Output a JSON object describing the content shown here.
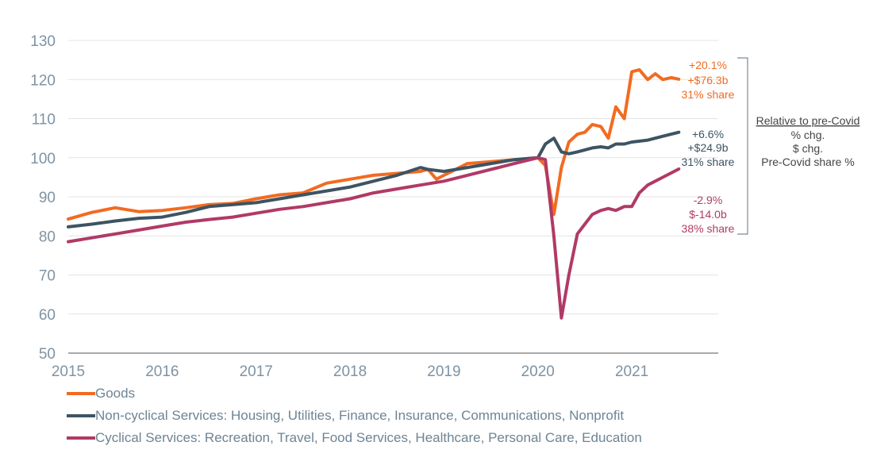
{
  "chart_data": {
    "type": "line",
    "xlim": [
      2015,
      2021.92
    ],
    "ylim": [
      50,
      130
    ],
    "yticks": [
      50,
      60,
      70,
      80,
      90,
      100,
      110,
      120,
      130
    ],
    "xticks": [
      "2015",
      "2016",
      "2017",
      "2018",
      "2019",
      "2020",
      "2021"
    ],
    "grid": true,
    "legend_position": "bottom-left",
    "series": [
      {
        "name": "Goods",
        "color": "#f26b21",
        "x": [
          2015.0,
          2015.25,
          2015.5,
          2015.75,
          2016.0,
          2016.25,
          2016.5,
          2016.75,
          2017.0,
          2017.25,
          2017.5,
          2017.75,
          2018.0,
          2018.25,
          2018.5,
          2018.75,
          2018.83,
          2018.92,
          2019.0,
          2019.25,
          2019.5,
          2019.75,
          2020.0,
          2020.08,
          2020.17,
          2020.25,
          2020.33,
          2020.42,
          2020.5,
          2020.58,
          2020.67,
          2020.75,
          2020.83,
          2020.92,
          2021.0,
          2021.08,
          2021.17,
          2021.25,
          2021.33,
          2021.42,
          2021.5
        ],
        "values": [
          84.3,
          86.0,
          87.2,
          86.2,
          86.5,
          87.2,
          88.0,
          88.3,
          89.5,
          90.5,
          91.0,
          93.5,
          94.5,
          95.5,
          96.0,
          96.5,
          97.0,
          94.5,
          95.5,
          98.5,
          99.0,
          99.5,
          100.0,
          98.0,
          85.5,
          97.5,
          104.0,
          106.0,
          106.5,
          108.5,
          108.0,
          105.0,
          113.0,
          110.0,
          122.0,
          122.5,
          120.0,
          121.5,
          120.0,
          120.5,
          120.1
        ]
      },
      {
        "name": "Non-cyclical Services: Housing, Utilities, Finance, Insurance, Communications, Nonprofit",
        "color": "#3d5462",
        "x": [
          2015.0,
          2015.25,
          2015.5,
          2015.75,
          2016.0,
          2016.25,
          2016.5,
          2016.75,
          2017.0,
          2017.25,
          2017.5,
          2017.75,
          2018.0,
          2018.25,
          2018.5,
          2018.75,
          2018.83,
          2019.0,
          2019.25,
          2019.5,
          2019.75,
          2020.0,
          2020.08,
          2020.17,
          2020.25,
          2020.33,
          2020.42,
          2020.5,
          2020.58,
          2020.67,
          2020.75,
          2020.83,
          2020.92,
          2021.0,
          2021.17,
          2021.33,
          2021.5
        ],
        "values": [
          82.3,
          83.0,
          83.8,
          84.5,
          84.8,
          86.0,
          87.5,
          88.0,
          88.5,
          89.5,
          90.5,
          91.5,
          92.5,
          94.0,
          95.5,
          97.5,
          97.0,
          96.5,
          97.5,
          98.5,
          99.5,
          100.0,
          103.5,
          105.0,
          101.5,
          101.0,
          101.5,
          102.0,
          102.5,
          102.8,
          102.5,
          103.5,
          103.5,
          104.0,
          104.5,
          105.5,
          106.5
        ]
      },
      {
        "name": "Cyclical Services: Recreation, Travel, Food Services, Healthcare, Personal Care, Education",
        "color": "#b03a66",
        "x": [
          2015.0,
          2015.25,
          2015.5,
          2015.75,
          2016.0,
          2016.25,
          2016.5,
          2016.75,
          2017.0,
          2017.25,
          2017.5,
          2017.75,
          2018.0,
          2018.25,
          2018.5,
          2018.75,
          2019.0,
          2019.25,
          2019.5,
          2019.75,
          2020.0,
          2020.08,
          2020.17,
          2020.25,
          2020.33,
          2020.42,
          2020.5,
          2020.58,
          2020.67,
          2020.75,
          2020.83,
          2020.92,
          2021.0,
          2021.08,
          2021.17,
          2021.33,
          2021.5
        ],
        "values": [
          78.5,
          79.5,
          80.5,
          81.5,
          82.5,
          83.5,
          84.2,
          84.8,
          85.8,
          86.8,
          87.5,
          88.5,
          89.5,
          91.0,
          92.0,
          93.0,
          94.0,
          95.5,
          97.0,
          98.5,
          100.0,
          99.5,
          80.0,
          59.0,
          70.0,
          80.5,
          83.0,
          85.5,
          86.5,
          87.0,
          86.5,
          87.5,
          87.5,
          91.0,
          93.0,
          95.0,
          97.1
        ]
      }
    ],
    "annotations": [
      {
        "color": "#f26b21",
        "lines": [
          "+20.1%",
          "+$76.3b",
          "31% share"
        ]
      },
      {
        "color": "#3d5462",
        "lines": [
          "+6.6%",
          "+$24.9b",
          "31% share"
        ]
      },
      {
        "color": "#b03a66",
        "lines": [
          "-2.9%",
          "$-14.0b",
          "38% share"
        ]
      }
    ],
    "key": {
      "title": "Relative to pre-Covid",
      "lines": [
        "% chg.",
        "$ chg.",
        "Pre-Covid share %"
      ]
    }
  }
}
